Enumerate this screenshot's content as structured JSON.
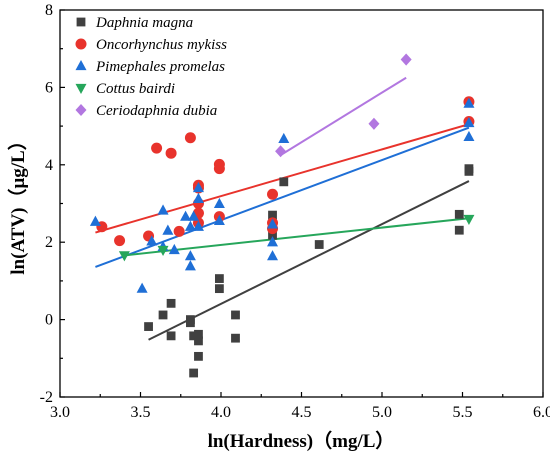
{
  "chart_data": {
    "type": "scatter",
    "xlabel": "ln(Hardness)（mg/L）",
    "ylabel": "ln(ATV)（μg/L）",
    "xlim": [
      3.0,
      6.0
    ],
    "ylim": [
      -2,
      8
    ],
    "xticks": [
      "3.0",
      "3.5",
      "4.0",
      "4.5",
      "5.0",
      "5.5",
      "6.0"
    ],
    "yticks": [
      "-2",
      "0",
      "2",
      "4",
      "6",
      "8"
    ],
    "grid": false,
    "legend_position": "top-left",
    "series": [
      {
        "name": "Daphnia magna",
        "marker": "square",
        "color": "#404040",
        "points": [
          [
            3.55,
            -0.18
          ],
          [
            3.64,
            0.12
          ],
          [
            3.69,
            0.42
          ],
          [
            3.69,
            -0.42
          ],
          [
            3.81,
            0.0
          ],
          [
            3.81,
            -0.08
          ],
          [
            3.83,
            -0.42
          ],
          [
            3.86,
            -0.55
          ],
          [
            3.86,
            -0.95
          ],
          [
            3.83,
            -1.38
          ],
          [
            3.86,
            -0.38
          ],
          [
            3.99,
            1.06
          ],
          [
            3.99,
            0.8
          ],
          [
            4.09,
            0.12
          ],
          [
            4.09,
            -0.48
          ],
          [
            4.32,
            2.7
          ],
          [
            4.32,
            2.18
          ],
          [
            4.39,
            3.56
          ],
          [
            4.61,
            1.94
          ],
          [
            5.48,
            2.72
          ],
          [
            5.48,
            2.31
          ],
          [
            5.54,
            3.83
          ],
          [
            5.54,
            3.9
          ]
        ],
        "fit": [
          [
            3.55,
            -0.52
          ],
          [
            5.54,
            3.58
          ]
        ]
      },
      {
        "name": "Oncorhynchus mykiss",
        "marker": "circle",
        "color": "#e8332c",
        "points": [
          [
            3.26,
            2.4
          ],
          [
            3.37,
            2.04
          ],
          [
            3.55,
            2.16
          ],
          [
            3.6,
            4.43
          ],
          [
            3.69,
            4.3
          ],
          [
            3.74,
            2.28
          ],
          [
            3.81,
            4.7
          ],
          [
            3.86,
            2.5
          ],
          [
            3.86,
            2.75
          ],
          [
            3.86,
            3.0
          ],
          [
            3.86,
            3.4
          ],
          [
            3.86,
            3.47
          ],
          [
            3.99,
            2.66
          ],
          [
            3.99,
            3.9
          ],
          [
            3.99,
            4.01
          ],
          [
            4.32,
            3.24
          ],
          [
            4.32,
            2.5
          ],
          [
            4.32,
            2.35
          ],
          [
            5.54,
            5.12
          ],
          [
            5.54,
            5.63
          ]
        ],
        "fit": [
          [
            3.22,
            2.25
          ],
          [
            5.54,
            5.05
          ]
        ]
      },
      {
        "name": "Pimephales promelas",
        "marker": "triangle-up",
        "color": "#1f6fd6",
        "points": [
          [
            3.22,
            2.53
          ],
          [
            3.51,
            0.8
          ],
          [
            3.57,
            2.02
          ],
          [
            3.64,
            2.82
          ],
          [
            3.64,
            1.88
          ],
          [
            3.67,
            2.3
          ],
          [
            3.71,
            1.8
          ],
          [
            3.78,
            2.66
          ],
          [
            3.81,
            1.38
          ],
          [
            3.81,
            1.64
          ],
          [
            3.81,
            2.4
          ],
          [
            3.83,
            2.66
          ],
          [
            3.86,
            3.4
          ],
          [
            3.86,
            3.12
          ],
          [
            3.86,
            2.4
          ],
          [
            3.99,
            2.99
          ],
          [
            3.99,
            2.55
          ],
          [
            4.32,
            2.46
          ],
          [
            4.32,
            2.0
          ],
          [
            4.32,
            1.64
          ],
          [
            4.39,
            4.67
          ],
          [
            5.54,
            5.58
          ],
          [
            5.54,
            5.08
          ],
          [
            5.54,
            4.72
          ]
        ],
        "fit": [
          [
            3.22,
            1.36
          ],
          [
            5.54,
            4.96
          ]
        ]
      },
      {
        "name": "Cottus bairdi",
        "marker": "triangle-down",
        "color": "#26a65b",
        "points": [
          [
            3.4,
            1.66
          ],
          [
            3.64,
            1.8
          ],
          [
            5.54,
            2.6
          ]
        ],
        "fit": [
          [
            3.4,
            1.66
          ],
          [
            5.54,
            2.62
          ]
        ]
      },
      {
        "name": "Ceriodaphnia dubia",
        "marker": "diamond",
        "color": "#b277e0",
        "points": [
          [
            4.37,
            4.35
          ],
          [
            4.95,
            5.06
          ],
          [
            5.15,
            6.72
          ]
        ],
        "fit": [
          [
            4.37,
            4.25
          ],
          [
            5.15,
            6.25
          ]
        ]
      }
    ]
  }
}
